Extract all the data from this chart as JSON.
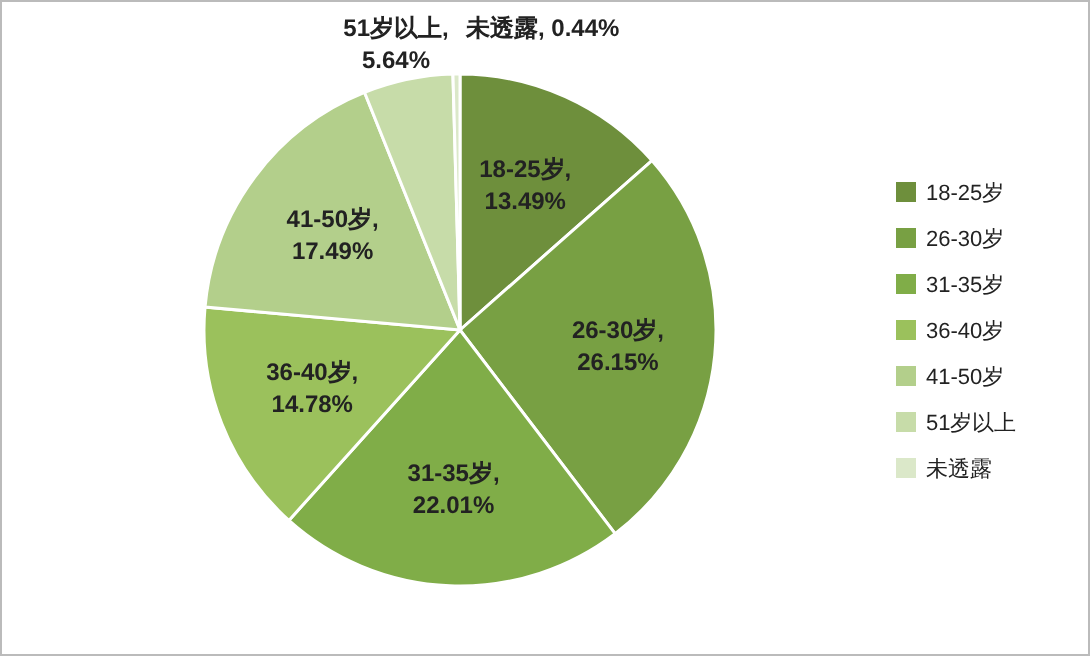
{
  "chart_data": {
    "type": "pie",
    "categories": [
      "18-25岁",
      "26-30岁",
      "31-35岁",
      "36-40岁",
      "41-50岁",
      "51岁以上",
      "未透露"
    ],
    "values": [
      13.49,
      26.15,
      22.01,
      14.78,
      17.49,
      5.64,
      0.44
    ],
    "colors": [
      "#6e8f3c",
      "#78a043",
      "#80ad48",
      "#9bc15c",
      "#b3cf8b",
      "#c7dca9",
      "#dbe8c9"
    ],
    "value_labels": [
      "18-25岁,\n13.49%",
      "26-30岁,\n26.15%",
      "31-35岁,\n22.01%",
      "36-40岁,\n14.78%",
      "41-50岁,\n17.49%",
      "51岁以上,\n5.64%",
      "未透露, 0.44%"
    ],
    "legend": "right"
  }
}
